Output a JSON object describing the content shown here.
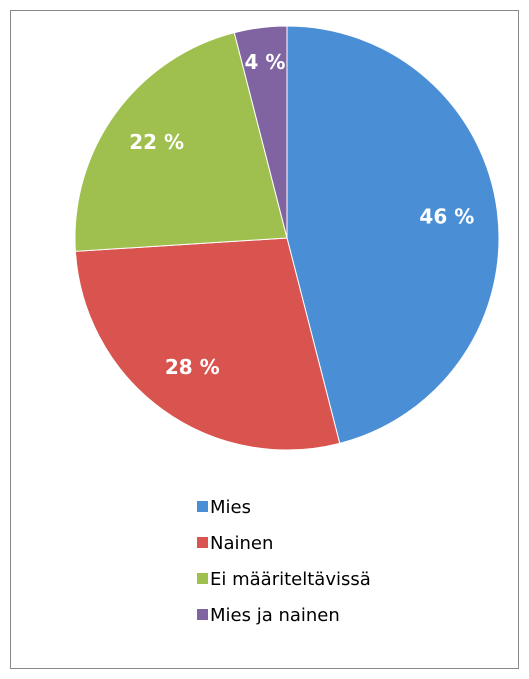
{
  "chart_data": {
    "type": "pie",
    "categories": [
      "Mies",
      "Nainen",
      "Ei määriteltävissä",
      "Mies ja nainen"
    ],
    "values": [
      46,
      28,
      22,
      4
    ],
    "value_labels": [
      "46 %",
      "28 %",
      "22 %",
      "4 %"
    ],
    "colors": [
      "#4a8fd6",
      "#d9534f",
      "#9fc04f",
      "#8064a2"
    ]
  }
}
